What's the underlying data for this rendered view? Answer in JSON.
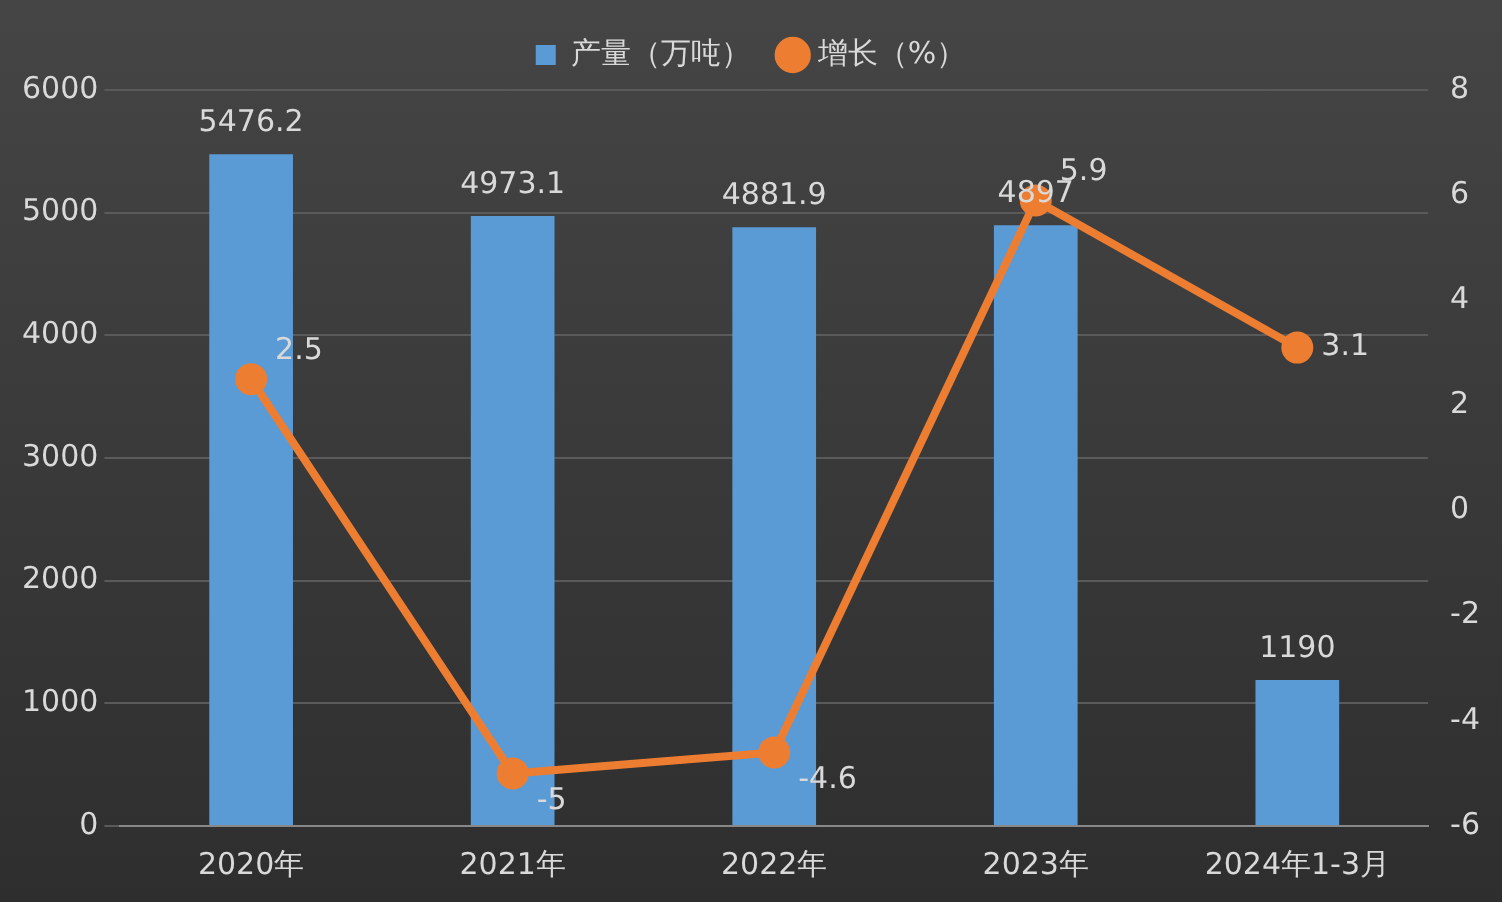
{
  "chart_data": {
    "type": "bar",
    "categories": [
      "2020年",
      "2021年",
      "2022年",
      "2023年",
      "2024年1-3月"
    ],
    "series": [
      {
        "name": "产量（万吨）",
        "color": "#5b9bd5",
        "values": [
          5476.2,
          4973.1,
          4881.9,
          4897,
          1190
        ]
      },
      {
        "name": "增长（%）",
        "type": "line",
        "axis": "y2",
        "color": "#ed7d31",
        "values": [
          2.5,
          -5,
          -4.6,
          5.9,
          3.1
        ]
      }
    ],
    "ylim": [
      0,
      6000
    ],
    "yticks": [
      0,
      1000,
      2000,
      3000,
      4000,
      5000,
      6000
    ],
    "y2lim": [
      -6,
      8
    ],
    "y2ticks": [
      -6,
      -4,
      -2,
      0,
      2,
      4,
      6,
      8
    ],
    "grid": "y",
    "legend": "top",
    "marker": "circle",
    "data_labels": true
  }
}
